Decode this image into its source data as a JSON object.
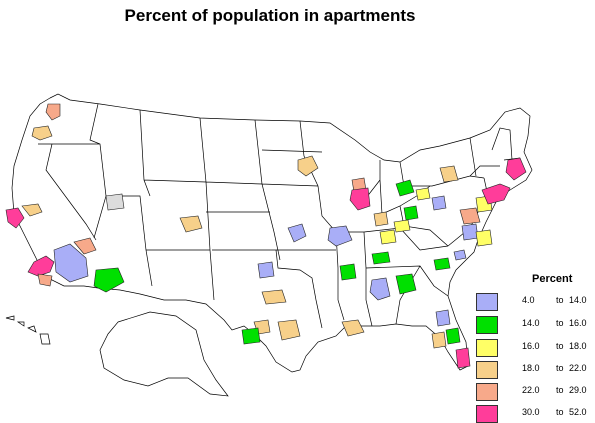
{
  "title": "Percent of population in apartments",
  "legend": {
    "title": "Percent",
    "classes": [
      {
        "from": "4.0",
        "to": "to",
        "max": "14.0",
        "color": "#a9aef7",
        "key": "c1"
      },
      {
        "from": "14.0",
        "to": "to",
        "max": "16.0",
        "color": "#00e000",
        "key": "c2"
      },
      {
        "from": "16.0",
        "to": "to",
        "max": "18.0",
        "color": "#ffff66",
        "key": "c3"
      },
      {
        "from": "18.0",
        "to": "to",
        "max": "22.0",
        "color": "#f7d08a",
        "key": "c4"
      },
      {
        "from": "22.0",
        "to": "to",
        "max": "29.0",
        "color": "#f7a98a",
        "key": "c5"
      },
      {
        "from": "30.0",
        "to": "to",
        "max": "52.0",
        "color": "#ff3d9a",
        "key": "c6"
      }
    ]
  },
  "no_data_color": "#dcdcdc",
  "metro_areas": [
    {
      "class": "c5",
      "label": "Seattle"
    },
    {
      "class": "c4",
      "label": "Portland"
    },
    {
      "class": "c4",
      "label": "Sacramento"
    },
    {
      "class": "c6",
      "label": "San Francisco"
    },
    {
      "class": "c6",
      "label": "Los Angeles"
    },
    {
      "class": "c5",
      "label": "San Diego"
    },
    {
      "class": "c1",
      "label": "Las Vegas area"
    },
    {
      "class": "c5",
      "label": "Las Vegas"
    },
    {
      "class": "c2",
      "label": "Phoenix"
    },
    {
      "class": "nodata",
      "label": "Salt Lake City"
    },
    {
      "class": "c4",
      "label": "Denver"
    },
    {
      "class": "c4",
      "label": "Minneapolis"
    },
    {
      "class": "c1",
      "label": "Kansas City"
    },
    {
      "class": "c1",
      "label": "St. Louis"
    },
    {
      "class": "c1",
      "label": "Oklahoma City"
    },
    {
      "class": "c4",
      "label": "Dallas"
    },
    {
      "class": "c4",
      "label": "Austin"
    },
    {
      "class": "c2",
      "label": "San Antonio"
    },
    {
      "class": "c4",
      "label": "Houston"
    },
    {
      "class": "c4",
      "label": "New Orleans"
    },
    {
      "class": "c5",
      "label": "Milwaukee"
    },
    {
      "class": "c6",
      "label": "Chicago"
    },
    {
      "class": "c2",
      "label": "Detroit"
    },
    {
      "class": "c3",
      "label": "Cleveland"
    },
    {
      "class": "c4",
      "label": "Indianapolis"
    },
    {
      "class": "c2",
      "label": "Columbus"
    },
    {
      "class": "c3",
      "label": "Cincinnati"
    },
    {
      "class": "c3",
      "label": "Louisville"
    },
    {
      "class": "c2",
      "label": "Nashville"
    },
    {
      "class": "c2",
      "label": "Memphis"
    },
    {
      "class": "c1",
      "label": "Birmingham"
    },
    {
      "class": "c2",
      "label": "Atlanta"
    },
    {
      "class": "c2",
      "label": "Charlotte"
    },
    {
      "class": "c1",
      "label": "Greensboro"
    },
    {
      "class": "c1",
      "label": "Pittsburgh"
    },
    {
      "class": "c4",
      "label": "Buffalo"
    },
    {
      "class": "c5",
      "label": "Philadelphia"
    },
    {
      "class": "c3",
      "label": "Baltimore"
    },
    {
      "class": "c1",
      "label": "Richmond"
    },
    {
      "class": "c3",
      "label": "Norfolk"
    },
    {
      "class": "c6",
      "label": "New York"
    },
    {
      "class": "c6",
      "label": "Boston"
    },
    {
      "class": "c1",
      "label": "Jacksonville"
    },
    {
      "class": "c4",
      "label": "Tampa"
    },
    {
      "class": "c2",
      "label": "Orlando"
    },
    {
      "class": "c6",
      "label": "Miami"
    }
  ]
}
